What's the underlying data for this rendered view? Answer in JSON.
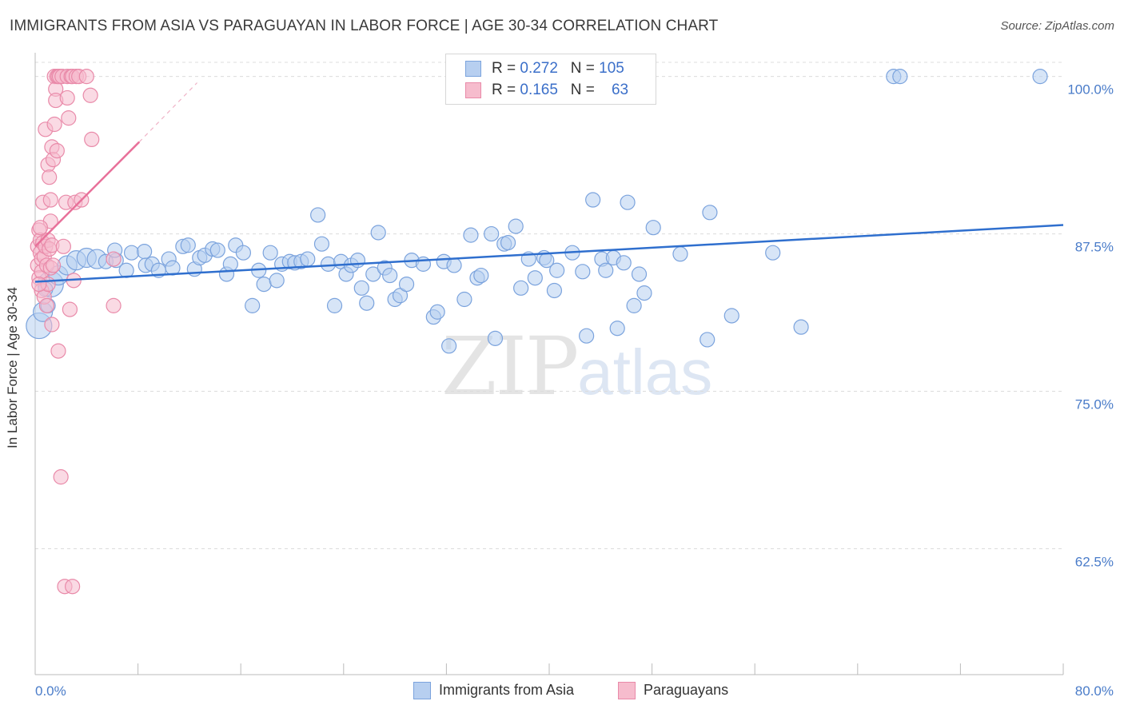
{
  "title": "IMMIGRANTS FROM ASIA VS PARAGUAYAN IN LABOR FORCE | AGE 30-34 CORRELATION CHART",
  "source": "Source: ZipAtlas.com",
  "watermark": {
    "zip": "ZIP",
    "atlas": "atlas"
  },
  "legend_top": {
    "rows": [
      {
        "r_label": "R = ",
        "r_value": "0.272",
        "n_label": "N = ",
        "n_value": "105"
      },
      {
        "r_label": "R = ",
        "r_value": "0.165",
        "n_label": "N = ",
        "n_value": "63"
      }
    ]
  },
  "colors": {
    "blue_fill": "#b7cff0",
    "blue_stroke": "#7ba3dd",
    "blue_line": "#2f6fce",
    "pink_fill": "#f6bccd",
    "pink_stroke": "#e98aa9",
    "pink_line": "#e8719a",
    "axis_label": "#4a7cc9",
    "grid": "#dcdcdc"
  },
  "chart_data": {
    "type": "scatter",
    "title": "IMMIGRANTS FROM ASIA VS PARAGUAYAN IN LABOR FORCE | AGE 30-34 CORRELATION CHART",
    "xlabel": "",
    "ylabel": "In Labor Force | Age 30-34",
    "xlim": [
      0,
      80
    ],
    "ylim": [
      52.5,
      101.5
    ],
    "x_tick_labels": [
      "0.0%",
      "80.0%"
    ],
    "y_ticks": [
      62.5,
      75.0,
      87.5,
      100.0
    ],
    "y_tick_labels": [
      "62.5%",
      "75.0%",
      "87.5%",
      "100.0%"
    ],
    "grid": true,
    "legend_position": "bottom",
    "series": [
      {
        "name": "Immigrants from Asia",
        "R": 0.272,
        "N": 105,
        "trend": {
          "x0": 0,
          "y0": 83.7,
          "x1": 80,
          "y1": 88.2
        },
        "points": [
          [
            0.3,
            80.2,
            3
          ],
          [
            0.6,
            81.3,
            2
          ],
          [
            1.2,
            83.5,
            3
          ],
          [
            1.8,
            84.2,
            2
          ],
          [
            2.5,
            85.0,
            2
          ],
          [
            3.2,
            85.4,
            2
          ],
          [
            4.0,
            85.6,
            2
          ],
          [
            4.8,
            85.5,
            2
          ],
          [
            5.5,
            85.3,
            1
          ],
          [
            6.3,
            85.4,
            1
          ],
          [
            6.2,
            86.2,
            1
          ],
          [
            7.1,
            84.6,
            1
          ],
          [
            7.5,
            86.0,
            1
          ],
          [
            8.5,
            86.1,
            1
          ],
          [
            8.6,
            85.0,
            1
          ],
          [
            9.1,
            85.1,
            1
          ],
          [
            9.6,
            84.6,
            1
          ],
          [
            10.4,
            85.5,
            1
          ],
          [
            10.7,
            84.8,
            1
          ],
          [
            11.5,
            86.5,
            1
          ],
          [
            11.9,
            86.6,
            1
          ],
          [
            12.4,
            84.7,
            1
          ],
          [
            12.8,
            85.6,
            1
          ],
          [
            13.2,
            85.8,
            1
          ],
          [
            13.8,
            86.3,
            1
          ],
          [
            14.2,
            86.2,
            1
          ],
          [
            14.9,
            84.3,
            1
          ],
          [
            15.2,
            85.1,
            1
          ],
          [
            15.6,
            86.6,
            1
          ],
          [
            16.2,
            86.0,
            1
          ],
          [
            16.9,
            81.8,
            1
          ],
          [
            17.4,
            84.6,
            1
          ],
          [
            17.8,
            83.5,
            1
          ],
          [
            18.3,
            86.0,
            1
          ],
          [
            18.8,
            83.8,
            1
          ],
          [
            19.2,
            85.1,
            1
          ],
          [
            19.8,
            85.3,
            1
          ],
          [
            20.2,
            85.2,
            1
          ],
          [
            20.7,
            85.3,
            1
          ],
          [
            21.2,
            85.5,
            1
          ],
          [
            22.0,
            89.0,
            1
          ],
          [
            22.3,
            86.7,
            1
          ],
          [
            22.8,
            85.1,
            1
          ],
          [
            23.3,
            81.8,
            1
          ],
          [
            23.8,
            85.3,
            1
          ],
          [
            24.2,
            84.3,
            1
          ],
          [
            24.6,
            85.0,
            1
          ],
          [
            25.1,
            85.4,
            1
          ],
          [
            25.4,
            83.2,
            1
          ],
          [
            25.8,
            82.0,
            1
          ],
          [
            26.3,
            84.3,
            1
          ],
          [
            26.7,
            87.6,
            1
          ],
          [
            27.2,
            84.8,
            1
          ],
          [
            27.6,
            84.2,
            1
          ],
          [
            28.0,
            82.3,
            1
          ],
          [
            28.4,
            82.6,
            1
          ],
          [
            28.9,
            83.5,
            1
          ],
          [
            29.3,
            85.4,
            1
          ],
          [
            30.2,
            85.1,
            1
          ],
          [
            31.0,
            80.9,
            1
          ],
          [
            31.3,
            81.3,
            1
          ],
          [
            31.8,
            85.3,
            1
          ],
          [
            32.2,
            78.6,
            1
          ],
          [
            32.6,
            85.0,
            1
          ],
          [
            33.4,
            82.3,
            1
          ],
          [
            33.9,
            87.4,
            1
          ],
          [
            34.4,
            84.0,
            1
          ],
          [
            34.7,
            84.2,
            1
          ],
          [
            35.5,
            87.5,
            1
          ],
          [
            35.8,
            79.2,
            1
          ],
          [
            36.5,
            86.7,
            1
          ],
          [
            36.8,
            86.8,
            1
          ],
          [
            37.4,
            88.1,
            1
          ],
          [
            37.8,
            83.2,
            1
          ],
          [
            38.4,
            85.5,
            1
          ],
          [
            38.9,
            84.0,
            1
          ],
          [
            39.6,
            85.6,
            1
          ],
          [
            39.8,
            85.4,
            1
          ],
          [
            40.4,
            83.0,
            1
          ],
          [
            40.6,
            84.6,
            1
          ],
          [
            41.8,
            86.0,
            1
          ],
          [
            42.6,
            84.5,
            1
          ],
          [
            42.9,
            79.4,
            1
          ],
          [
            43.4,
            90.2,
            1
          ],
          [
            44.1,
            85.5,
            1
          ],
          [
            44.4,
            84.6,
            1
          ],
          [
            45.0,
            85.6,
            1
          ],
          [
            45.3,
            80.0,
            1
          ],
          [
            45.8,
            85.2,
            1
          ],
          [
            46.1,
            90.0,
            1
          ],
          [
            46.6,
            81.8,
            1
          ],
          [
            47.0,
            84.3,
            1
          ],
          [
            47.4,
            82.8,
            1
          ],
          [
            48.1,
            88.0,
            1
          ],
          [
            50.2,
            85.9,
            1
          ],
          [
            52.3,
            79.1,
            1
          ],
          [
            52.5,
            89.2,
            1
          ],
          [
            54.2,
            81.0,
            1
          ],
          [
            57.4,
            86.0,
            1
          ],
          [
            59.6,
            80.1,
            1
          ],
          [
            66.8,
            100.0,
            1
          ],
          [
            67.3,
            100.0,
            1
          ],
          [
            78.2,
            100.0,
            1
          ],
          [
            1.0,
            81.8,
            1
          ],
          [
            0.8,
            83.1,
            1
          ]
        ]
      },
      {
        "name": "Paraguayans",
        "R": 0.165,
        "N": 63,
        "trend": {
          "x0": 0,
          "y0": 86.5,
          "x1": 8.1,
          "y1": 94.8,
          "x2": 12.6,
          "y2": 99.5
        },
        "points": [
          [
            0.2,
            86.5,
            1
          ],
          [
            0.2,
            85.0,
            1
          ],
          [
            0.3,
            84.0,
            1
          ],
          [
            0.3,
            87.8,
            1
          ],
          [
            0.4,
            87.0,
            1
          ],
          [
            0.4,
            86.0,
            1
          ],
          [
            0.5,
            85.5,
            1
          ],
          [
            0.5,
            84.5,
            1
          ],
          [
            0.5,
            83.0,
            1
          ],
          [
            0.6,
            90.0,
            1
          ],
          [
            0.6,
            86.8,
            1
          ],
          [
            0.7,
            85.7,
            1
          ],
          [
            0.7,
            82.5,
            1
          ],
          [
            0.8,
            95.8,
            1
          ],
          [
            0.8,
            86.5,
            1
          ],
          [
            0.9,
            85.0,
            1
          ],
          [
            0.9,
            81.8,
            1
          ],
          [
            1.0,
            93.0,
            1
          ],
          [
            1.0,
            87.0,
            1
          ],
          [
            1.0,
            83.5,
            1
          ],
          [
            1.1,
            92.0,
            1
          ],
          [
            1.1,
            86.3,
            1
          ],
          [
            1.2,
            90.2,
            1
          ],
          [
            1.2,
            88.5,
            1
          ],
          [
            1.2,
            84.8,
            1
          ],
          [
            1.3,
            94.4,
            1
          ],
          [
            1.3,
            86.6,
            1
          ],
          [
            1.3,
            80.3,
            1
          ],
          [
            1.4,
            93.4,
            1
          ],
          [
            1.4,
            85.0,
            1
          ],
          [
            1.5,
            100.0,
            1
          ],
          [
            1.5,
            96.2,
            1
          ],
          [
            1.6,
            99.0,
            1
          ],
          [
            1.6,
            98.1,
            1
          ],
          [
            1.7,
            100.0,
            1
          ],
          [
            1.7,
            94.1,
            1
          ],
          [
            1.8,
            100.0,
            1
          ],
          [
            1.8,
            78.2,
            1
          ],
          [
            1.9,
            100.0,
            1
          ],
          [
            2.0,
            68.2,
            1
          ],
          [
            2.1,
            100.0,
            1
          ],
          [
            2.2,
            86.5,
            1
          ],
          [
            2.3,
            59.5,
            1
          ],
          [
            2.4,
            90.0,
            1
          ],
          [
            2.5,
            98.3,
            1
          ],
          [
            2.5,
            100.0,
            1
          ],
          [
            2.6,
            96.7,
            1
          ],
          [
            2.7,
            81.5,
            1
          ],
          [
            2.8,
            100.0,
            1
          ],
          [
            2.9,
            100.0,
            1
          ],
          [
            2.9,
            59.5,
            1
          ],
          [
            3.0,
            83.8,
            1
          ],
          [
            3.1,
            90.0,
            1
          ],
          [
            3.2,
            100.0,
            1
          ],
          [
            3.4,
            100.0,
            1
          ],
          [
            3.6,
            90.2,
            1
          ],
          [
            4.0,
            100.0,
            1
          ],
          [
            4.3,
            98.5,
            1
          ],
          [
            4.4,
            95.0,
            1
          ],
          [
            6.1,
            85.5,
            1
          ],
          [
            6.1,
            81.8,
            1
          ],
          [
            0.4,
            88.0,
            1
          ],
          [
            0.3,
            83.5,
            1
          ]
        ]
      }
    ]
  },
  "legend_bottom": [
    {
      "label": "Immigrants from Asia"
    },
    {
      "label": "Paraguayans"
    }
  ]
}
